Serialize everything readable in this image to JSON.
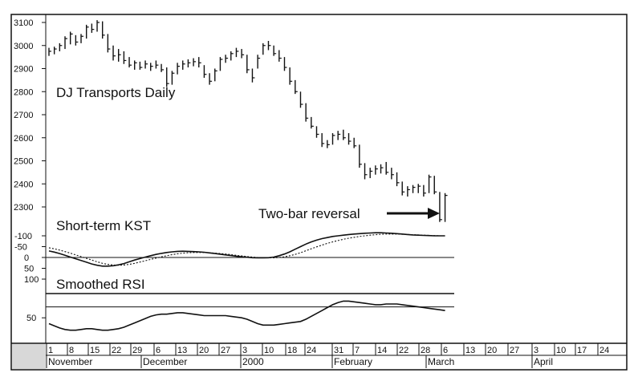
{
  "chart_data": {
    "type": "ohlc",
    "title": "DJ Transports Daily",
    "annotation": "Two-bar reversal",
    "price_axis": {
      "ylim": [
        2200,
        3120
      ],
      "ticks": [
        2300,
        2400,
        2500,
        2600,
        2700,
        2800,
        2900,
        3000,
        3100
      ]
    },
    "price_bars": [
      {
        "h": 2990,
        "l": 2955,
        "c": 2975
      },
      {
        "h": 2995,
        "l": 2962,
        "c": 2985
      },
      {
        "h": 3010,
        "l": 2975,
        "c": 3000
      },
      {
        "h": 3040,
        "l": 2985,
        "c": 3030
      },
      {
        "h": 3060,
        "l": 3005,
        "c": 3050
      },
      {
        "h": 3045,
        "l": 3000,
        "c": 3015
      },
      {
        "h": 3050,
        "l": 3010,
        "c": 3040
      },
      {
        "h": 3090,
        "l": 3030,
        "c": 3080
      },
      {
        "h": 3095,
        "l": 3055,
        "c": 3070
      },
      {
        "h": 3110,
        "l": 3060,
        "c": 3100
      },
      {
        "h": 3105,
        "l": 3030,
        "c": 3045
      },
      {
        "h": 3050,
        "l": 2970,
        "c": 2985
      },
      {
        "h": 3000,
        "l": 2935,
        "c": 2955
      },
      {
        "h": 2985,
        "l": 2930,
        "c": 2960
      },
      {
        "h": 2975,
        "l": 2920,
        "c": 2935
      },
      {
        "h": 2950,
        "l": 2905,
        "c": 2915
      },
      {
        "h": 2935,
        "l": 2895,
        "c": 2925
      },
      {
        "h": 2930,
        "l": 2895,
        "c": 2905
      },
      {
        "h": 2935,
        "l": 2900,
        "c": 2920
      },
      {
        "h": 2925,
        "l": 2890,
        "c": 2910
      },
      {
        "h": 2935,
        "l": 2900,
        "c": 2915
      },
      {
        "h": 2920,
        "l": 2885,
        "c": 2895
      },
      {
        "h": 2905,
        "l": 2820,
        "c": 2835
      },
      {
        "h": 2890,
        "l": 2830,
        "c": 2880
      },
      {
        "h": 2925,
        "l": 2875,
        "c": 2910
      },
      {
        "h": 2935,
        "l": 2895,
        "c": 2920
      },
      {
        "h": 2940,
        "l": 2905,
        "c": 2925
      },
      {
        "h": 2945,
        "l": 2910,
        "c": 2930
      },
      {
        "h": 2950,
        "l": 2905,
        "c": 2925
      },
      {
        "h": 2915,
        "l": 2860,
        "c": 2875
      },
      {
        "h": 2880,
        "l": 2830,
        "c": 2845
      },
      {
        "h": 2900,
        "l": 2845,
        "c": 2890
      },
      {
        "h": 2950,
        "l": 2890,
        "c": 2940
      },
      {
        "h": 2960,
        "l": 2925,
        "c": 2945
      },
      {
        "h": 2975,
        "l": 2935,
        "c": 2965
      },
      {
        "h": 2990,
        "l": 2950,
        "c": 2975
      },
      {
        "h": 2985,
        "l": 2945,
        "c": 2960
      },
      {
        "h": 2960,
        "l": 2880,
        "c": 2895
      },
      {
        "h": 2900,
        "l": 2840,
        "c": 2860
      },
      {
        "h": 2960,
        "l": 2900,
        "c": 2945
      },
      {
        "h": 3010,
        "l": 2960,
        "c": 3000
      },
      {
        "h": 3020,
        "l": 2980,
        "c": 3000
      },
      {
        "h": 3000,
        "l": 2955,
        "c": 2965
      },
      {
        "h": 2980,
        "l": 2930,
        "c": 2945
      },
      {
        "h": 2950,
        "l": 2890,
        "c": 2905
      },
      {
        "h": 2905,
        "l": 2830,
        "c": 2845
      },
      {
        "h": 2850,
        "l": 2790,
        "c": 2800
      },
      {
        "h": 2800,
        "l": 2730,
        "c": 2745
      },
      {
        "h": 2750,
        "l": 2670,
        "c": 2685
      },
      {
        "h": 2690,
        "l": 2640,
        "c": 2650
      },
      {
        "h": 2650,
        "l": 2600,
        "c": 2615
      },
      {
        "h": 2620,
        "l": 2560,
        "c": 2575
      },
      {
        "h": 2590,
        "l": 2555,
        "c": 2570
      },
      {
        "h": 2620,
        "l": 2570,
        "c": 2610
      },
      {
        "h": 2630,
        "l": 2590,
        "c": 2615
      },
      {
        "h": 2635,
        "l": 2590,
        "c": 2600
      },
      {
        "h": 2620,
        "l": 2570,
        "c": 2585
      },
      {
        "h": 2600,
        "l": 2555,
        "c": 2565
      },
      {
        "h": 2570,
        "l": 2470,
        "c": 2485
      },
      {
        "h": 2490,
        "l": 2420,
        "c": 2440
      },
      {
        "h": 2470,
        "l": 2425,
        "c": 2455
      },
      {
        "h": 2480,
        "l": 2440,
        "c": 2465
      },
      {
        "h": 2485,
        "l": 2445,
        "c": 2470
      },
      {
        "h": 2495,
        "l": 2440,
        "c": 2450
      },
      {
        "h": 2470,
        "l": 2420,
        "c": 2440
      },
      {
        "h": 2450,
        "l": 2390,
        "c": 2405
      },
      {
        "h": 2410,
        "l": 2350,
        "c": 2365
      },
      {
        "h": 2390,
        "l": 2345,
        "c": 2375
      },
      {
        "h": 2395,
        "l": 2360,
        "c": 2385
      },
      {
        "h": 2400,
        "l": 2360,
        "c": 2390
      },
      {
        "h": 2395,
        "l": 2345,
        "c": 2360
      },
      {
        "h": 2440,
        "l": 2360,
        "c": 2430
      },
      {
        "h": 2435,
        "l": 2355,
        "c": 2365
      },
      {
        "h": 2365,
        "l": 2235,
        "c": 2245
      },
      {
        "h": 2360,
        "l": 2235,
        "c": 2350
      }
    ],
    "kst_axis": {
      "ylim": [
        -160,
        120
      ],
      "ticks": [
        -100,
        -50,
        0,
        50,
        100
      ]
    },
    "kst_label": "Short-term KST",
    "kst_series": [
      {
        "name": "kst",
        "values": [
          -30,
          -25,
          -18,
          -10,
          -2,
          6,
          14,
          22,
          30,
          36,
          40,
          40,
          38,
          34,
          28,
          20,
          12,
          5,
          -2,
          -8,
          -14,
          -19,
          -23,
          -26,
          -28,
          -29,
          -28,
          -27,
          -26,
          -24,
          -21,
          -18,
          -15,
          -12,
          -9,
          -6,
          -3,
          -1,
          1,
          2,
          2,
          1,
          -2,
          -8,
          -16,
          -26,
          -38,
          -50,
          -62,
          -72,
          -80,
          -87,
          -92,
          -97,
          -100,
          -103,
          -106,
          -108,
          -110,
          -112,
          -113,
          -114,
          -114,
          -113,
          -112,
          -110,
          -108,
          -106,
          -104,
          -103,
          -102,
          -101,
          -100,
          -100,
          -100
        ]
      },
      {
        "name": "kst-ma",
        "values": [
          -45,
          -40,
          -34,
          -27,
          -20,
          -12,
          -4,
          4,
          12,
          20,
          27,
          32,
          35,
          36,
          35,
          32,
          27,
          21,
          15,
          9,
          3,
          -3,
          -8,
          -13,
          -17,
          -20,
          -22,
          -23,
          -23,
          -23,
          -22,
          -20,
          -18,
          -16,
          -13,
          -10,
          -7,
          -4,
          -2,
          0,
          1,
          2,
          2,
          0,
          -3,
          -8,
          -14,
          -22,
          -31,
          -40,
          -49,
          -57,
          -65,
          -72,
          -78,
          -84,
          -89,
          -93,
          -97,
          -100,
          -103,
          -105,
          -107,
          -108,
          -108,
          -108,
          -107,
          -106,
          -105,
          -104,
          -103,
          -102,
          -101,
          -100,
          -100
        ]
      }
    ],
    "rsi_axis": {
      "ylim": [
        20,
        85
      ],
      "ticks": [
        50
      ]
    },
    "rsi_label": "Smoothed RSI",
    "rsi_series": [
      {
        "name": "rsi",
        "values": [
          58,
          61,
          64,
          66,
          67,
          67,
          66,
          65,
          65,
          66,
          67,
          67,
          66,
          65,
          63,
          60,
          57,
          54,
          51,
          48,
          46,
          45,
          45,
          44,
          43,
          43,
          44,
          45,
          46,
          47,
          47,
          47,
          47,
          47,
          48,
          49,
          50,
          52,
          55,
          58,
          60,
          60,
          60,
          59,
          58,
          57,
          56,
          55,
          52,
          48,
          44,
          40,
          36,
          32,
          29,
          27,
          27,
          28,
          29,
          30,
          31,
          32,
          32,
          31,
          31,
          31,
          32,
          33,
          34,
          35,
          36,
          37,
          38,
          39,
          40
        ]
      }
    ],
    "rsi_hline": 35,
    "x_day_ticks": [
      "1",
      "8",
      "15",
      "22",
      "29",
      "6",
      "13",
      "20",
      "27",
      "3",
      "10",
      "18",
      "24",
      "31",
      "7",
      "14",
      "22",
      "28",
      "6",
      "13",
      "20",
      "27",
      "3",
      "10",
      "17",
      "24"
    ],
    "x_month_labels": [
      "November",
      "December",
      "2000",
      "February",
      "March",
      "April"
    ]
  }
}
